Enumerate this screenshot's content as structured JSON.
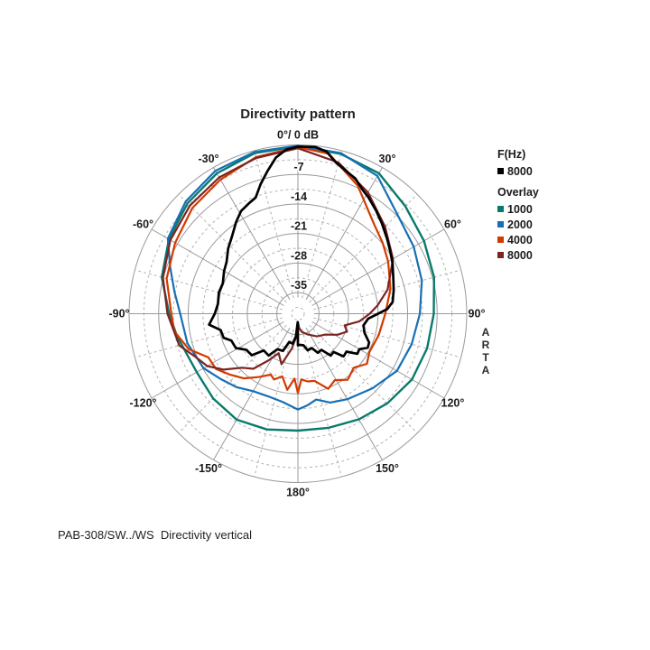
{
  "title": "Directivity pattern",
  "caption": "PAB-308/SW../WS  Directivity vertical",
  "watermark": {
    "l1": "A",
    "l2": "R",
    "l3": "T",
    "l4": "A"
  },
  "legend": {
    "primary_header": "F(Hz)",
    "primary_items": [
      {
        "label": "8000",
        "color": "#000000"
      }
    ],
    "overlay_header": "Overlay",
    "overlay_items": [
      {
        "label": "1000",
        "color": "#087a6c"
      },
      {
        "label": "2000",
        "color": "#176fb4"
      },
      {
        "label": "4000",
        "color": "#d33a00"
      },
      {
        "label": "8000",
        "color": "#7b2422"
      }
    ]
  },
  "chart_data": {
    "type": "polar-directivity",
    "title": "Directivity pattern",
    "zero_label": "0°/ 0 dB",
    "db_range": [
      0,
      -40
    ],
    "grid": {
      "ring_step_db": 7,
      "ring_substep_db": 3.5,
      "spoke_step_deg": 30,
      "spoke_substep_deg": 15,
      "color_solid": "#9a9a9a",
      "color_dashed": "#b3b3b3"
    },
    "angle_labels": [
      {
        "angle": 0,
        "label": "0°/ 0 dB"
      },
      {
        "angle": 30,
        "label": "30°"
      },
      {
        "angle": 60,
        "label": "60°"
      },
      {
        "angle": 90,
        "label": "90°"
      },
      {
        "angle": 120,
        "label": "120°"
      },
      {
        "angle": 150,
        "label": "150°"
      },
      {
        "angle": 180,
        "label": "180°"
      },
      {
        "angle": -150,
        "label": "-150°"
      },
      {
        "angle": -120,
        "label": "-120°"
      },
      {
        "angle": -90,
        "label": "-90°"
      },
      {
        "angle": -60,
        "label": "-60°"
      },
      {
        "angle": -30,
        "label": "-30°"
      }
    ],
    "db_ticks": [
      {
        "db": -7,
        "label": "-7"
      },
      {
        "db": -14,
        "label": "-14"
      },
      {
        "db": -21,
        "label": "-21"
      },
      {
        "db": -28,
        "label": "-28"
      },
      {
        "db": -35,
        "label": "-35"
      }
    ],
    "series": [
      {
        "name": "1000",
        "role": "overlay",
        "color": "#087a6c",
        "width": 2.4,
        "points": [
          [
            -180,
            -12.3
          ],
          [
            -165,
            -11.6
          ],
          [
            -150,
            -11.0
          ],
          [
            -135,
            -11.6
          ],
          [
            -120,
            -12.3
          ],
          [
            -110,
            -12.0
          ],
          [
            -100,
            -10.8
          ],
          [
            -90,
            -9.5
          ],
          [
            -75,
            -6.6
          ],
          [
            -60,
            -4.7
          ],
          [
            -45,
            -3.0
          ],
          [
            -30,
            -1.6
          ],
          [
            -15,
            -0.6
          ],
          [
            0,
            -0.3
          ],
          [
            15,
            -0.8
          ],
          [
            30,
            -1.6
          ],
          [
            45,
            -4.0
          ],
          [
            60,
            -5.5
          ],
          [
            75,
            -6.6
          ],
          [
            90,
            -7.8
          ],
          [
            105,
            -8.3
          ],
          [
            120,
            -8.8
          ],
          [
            135,
            -10.0
          ],
          [
            150,
            -11.1
          ],
          [
            165,
            -12.0
          ],
          [
            180,
            -12.3
          ]
        ]
      },
      {
        "name": "2000",
        "role": "overlay",
        "color": "#176fb4",
        "width": 2.2,
        "points": [
          [
            -180,
            -17.3
          ],
          [
            -170,
            -18.8
          ],
          [
            -160,
            -19.2
          ],
          [
            -150,
            -18.8
          ],
          [
            -140,
            -17.3
          ],
          [
            -130,
            -16.0
          ],
          [
            -120,
            -14.2
          ],
          [
            -105,
            -12.9
          ],
          [
            -90,
            -12.1
          ],
          [
            -80,
            -10.3
          ],
          [
            -70,
            -7.8
          ],
          [
            -60,
            -4.4
          ],
          [
            -45,
            -2.4
          ],
          [
            -30,
            -0.9
          ],
          [
            -15,
            -0.3
          ],
          [
            0,
            -0.2
          ],
          [
            15,
            -0.6
          ],
          [
            30,
            -2.3
          ],
          [
            45,
            -6.7
          ],
          [
            60,
            -8.3
          ],
          [
            75,
            -9.6
          ],
          [
            90,
            -11.1
          ],
          [
            105,
            -12.1
          ],
          [
            120,
            -12.9
          ],
          [
            135,
            -15.0
          ],
          [
            150,
            -16.6
          ],
          [
            160,
            -17.6
          ],
          [
            168,
            -19.2
          ],
          [
            174,
            -18.2
          ],
          [
            180,
            -17.3
          ]
        ]
      },
      {
        "name": "4000",
        "role": "overlay",
        "color": "#d33a00",
        "width": 2.2,
        "points": [
          [
            -180,
            -21.2
          ],
          [
            -177,
            -24.6
          ],
          [
            -172,
            -21.8
          ],
          [
            -166,
            -24.7
          ],
          [
            -160,
            -23.4
          ],
          [
            -156,
            -24.2
          ],
          [
            -148,
            -22.3
          ],
          [
            -140,
            -20.0
          ],
          [
            -132,
            -18.4
          ],
          [
            -124,
            -16.6
          ],
          [
            -116,
            -16.4
          ],
          [
            -108,
            -12.8
          ],
          [
            -98,
            -10.4
          ],
          [
            -90,
            -10.0
          ],
          [
            -75,
            -7.8
          ],
          [
            -60,
            -6.4
          ],
          [
            -45,
            -4.6
          ],
          [
            -30,
            -3.3
          ],
          [
            -15,
            -1.6
          ],
          [
            0,
            -0.5
          ],
          [
            11,
            -1.4
          ],
          [
            25,
            -6.5
          ],
          [
            41,
            -12.3
          ],
          [
            50,
            -13.8
          ],
          [
            60,
            -15.3
          ],
          [
            75,
            -17.3
          ],
          [
            90,
            -19.3
          ],
          [
            105,
            -20.2
          ],
          [
            118,
            -20.8
          ],
          [
            126,
            -19.8
          ],
          [
            134,
            -21.6
          ],
          [
            143,
            -20.4
          ],
          [
            151,
            -22.0
          ],
          [
            158,
            -20.8
          ],
          [
            166,
            -23.6
          ],
          [
            172,
            -23.8
          ],
          [
            177,
            -24.4
          ],
          [
            180,
            -21.2
          ]
        ]
      },
      {
        "name": "8000",
        "role": "overlay",
        "color": "#7b2422",
        "width": 2.2,
        "points": [
          [
            -180,
            -33.0
          ],
          [
            -179.2,
            -37.9
          ],
          [
            -176,
            -34.6
          ],
          [
            -170,
            -31.6
          ],
          [
            -162,
            -27.4
          ],
          [
            -154,
            -29.6
          ],
          [
            -148,
            -27.0
          ],
          [
            -141,
            -23.2
          ],
          [
            -134,
            -21.6
          ],
          [
            -127,
            -18.0
          ],
          [
            -120,
            -15.2
          ],
          [
            -113,
            -13.7
          ],
          [
            -105,
            -10.9
          ],
          [
            -90,
            -9.1
          ],
          [
            -75,
            -6.9
          ],
          [
            -60,
            -5.1
          ],
          [
            -45,
            -3.8
          ],
          [
            -30,
            -2.7
          ],
          [
            -15,
            -1.8
          ],
          [
            0,
            -0.8
          ],
          [
            15,
            -2.9
          ],
          [
            30,
            -6.8
          ],
          [
            45,
            -10.8
          ],
          [
            60,
            -14.0
          ],
          [
            75,
            -18.0
          ],
          [
            84,
            -21.0
          ],
          [
            90,
            -23.0
          ],
          [
            97,
            -25.3
          ],
          [
            104,
            -28.6
          ],
          [
            110,
            -27.6
          ],
          [
            118,
            -29.4
          ],
          [
            127,
            -31.8
          ],
          [
            140,
            -33.0
          ],
          [
            155,
            -34.6
          ],
          [
            168,
            -35.6
          ],
          [
            175,
            -36.6
          ],
          [
            179.4,
            -37.9
          ],
          [
            180,
            -32.6
          ]
        ]
      },
      {
        "name": "8000",
        "role": "main",
        "color": "#000000",
        "width": 2.7,
        "points": [
          [
            -180,
            -32.5
          ],
          [
            -178.8,
            -38.0
          ],
          [
            -175,
            -34.6
          ],
          [
            -170,
            -32.8
          ],
          [
            -163,
            -33.0
          ],
          [
            -158,
            -30.5
          ],
          [
            -150,
            -30.3
          ],
          [
            -145,
            -27.9
          ],
          [
            -137,
            -28.1
          ],
          [
            -132,
            -25.3
          ],
          [
            -125,
            -25.1
          ],
          [
            -119,
            -23.2
          ],
          [
            -112,
            -23.0
          ],
          [
            -108,
            -21.5
          ],
          [
            -102,
            -21.3
          ],
          [
            -97,
            -18.8
          ],
          [
            -90,
            -20.3
          ],
          [
            -83,
            -20.9
          ],
          [
            -75,
            -20.6
          ],
          [
            -68,
            -20.8
          ],
          [
            -60,
            -19.8
          ],
          [
            -54,
            -19.1
          ],
          [
            -47,
            -17.4
          ],
          [
            -40,
            -15.8
          ],
          [
            -34,
            -13.8
          ],
          [
            -29,
            -12.2
          ],
          [
            -24,
            -11.4
          ],
          [
            -20,
            -10.7
          ],
          [
            -16,
            -8.0
          ],
          [
            -12,
            -5.4
          ],
          [
            -8,
            -2.6
          ],
          [
            -4,
            -1.0
          ],
          [
            0,
            -0.4
          ],
          [
            6,
            -0.3
          ],
          [
            10,
            -1.0
          ],
          [
            14,
            -3.0
          ],
          [
            19,
            -4.4
          ],
          [
            23,
            -5.2
          ],
          [
            28,
            -7.0
          ],
          [
            31,
            -7.7
          ],
          [
            37,
            -9.3
          ],
          [
            43,
            -10.8
          ],
          [
            50,
            -12.4
          ],
          [
            56,
            -13.6
          ],
          [
            62,
            -14.6
          ],
          [
            69,
            -15.8
          ],
          [
            76,
            -16.6
          ],
          [
            83,
            -17.4
          ],
          [
            87,
            -18.8
          ],
          [
            90,
            -21.0
          ],
          [
            94,
            -23.3
          ],
          [
            100,
            -24.2
          ],
          [
            106,
            -23.6
          ],
          [
            112,
            -21.8
          ],
          [
            116,
            -21.6
          ],
          [
            120,
            -23.2
          ],
          [
            124,
            -23.0
          ],
          [
            128,
            -25.4
          ],
          [
            133,
            -25.2
          ],
          [
            137,
            -27.6
          ],
          [
            142,
            -27.4
          ],
          [
            147,
            -29.8
          ],
          [
            153,
            -29.6
          ],
          [
            158,
            -31.2
          ],
          [
            165,
            -31.0
          ],
          [
            170,
            -32.4
          ],
          [
            176,
            -32.6
          ],
          [
            180,
            -32.5
          ]
        ]
      }
    ]
  }
}
